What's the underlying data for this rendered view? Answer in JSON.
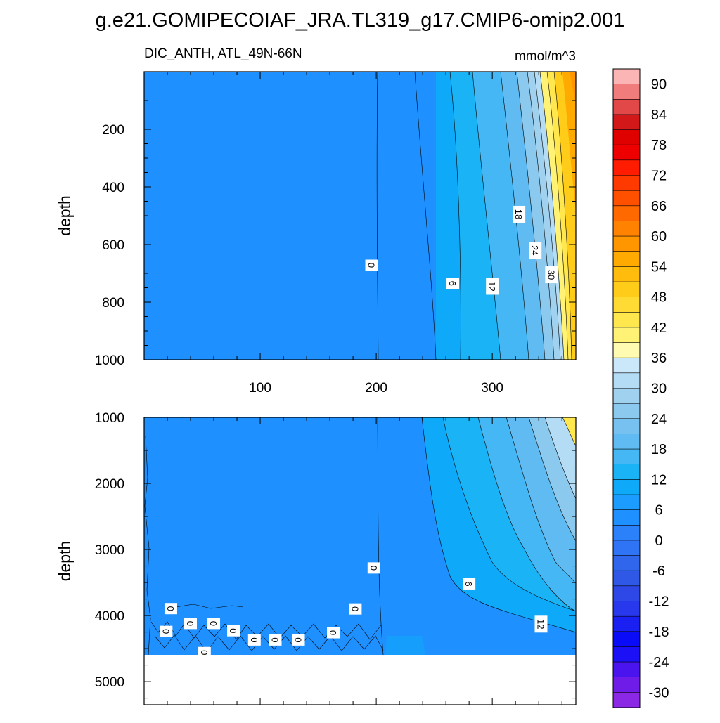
{
  "title": "g.e21.GOMIPECOIAF_JRA.TL319_g17.CMIP6-omip2.001",
  "chart_data": {
    "type": "heatmap",
    "variable": "DIC_ANTH, ATL_49N-66N",
    "units": "mmol/m^3",
    "x_axis": {
      "range": [
        0,
        372
      ],
      "ticks": [
        100,
        200,
        300
      ]
    },
    "upper_panel": {
      "ylabel": "depth",
      "ylim": [
        0,
        1000
      ],
      "yticks": [
        200,
        400,
        600,
        800,
        1000
      ],
      "contour_labels": [
        {
          "value": "0",
          "x": 196,
          "depth": 672
        },
        {
          "value": "6",
          "x": 266,
          "depth": 735
        },
        {
          "value": "12",
          "x": 300,
          "depth": 745
        },
        {
          "value": "18",
          "x": 323,
          "depth": 495
        },
        {
          "value": "24",
          "x": 337,
          "depth": 620
        },
        {
          "value": "30",
          "x": 351,
          "depth": 705
        }
      ]
    },
    "lower_panel": {
      "ylabel": "depth",
      "ylim": [
        1000,
        5350
      ],
      "yticks": [
        1000,
        2000,
        3000,
        4000,
        5000
      ],
      "data_bottom_depth": 4620,
      "contour_labels": [
        {
          "value": "0",
          "x": 198,
          "depth": 3280
        },
        {
          "value": "6",
          "x": 280,
          "depth": 3520
        },
        {
          "value": "12",
          "x": 342,
          "depth": 4130
        },
        {
          "value": "0",
          "x": 182,
          "depth": 3900
        },
        {
          "value": "0",
          "x": 23,
          "depth": 3895
        },
        {
          "value": "0",
          "x": 19,
          "depth": 4240
        },
        {
          "value": "0",
          "x": 40,
          "depth": 4120
        },
        {
          "value": "0",
          "x": 60,
          "depth": 4120
        },
        {
          "value": "0",
          "x": 77,
          "depth": 4230
        },
        {
          "value": "0",
          "x": 52,
          "depth": 4560
        },
        {
          "value": "0",
          "x": 95,
          "depth": 4370
        },
        {
          "value": "0",
          "x": 113,
          "depth": 4370
        },
        {
          "value": "0",
          "x": 133,
          "depth": 4370
        },
        {
          "value": "0",
          "x": 163,
          "depth": 4260
        }
      ]
    },
    "colorbar": {
      "tick_labels": [
        "90",
        "84",
        "78",
        "72",
        "66",
        "60",
        "54",
        "48",
        "42",
        "36",
        "30",
        "24",
        "18",
        "12",
        "6",
        "0",
        "-6",
        "-12",
        "-18",
        "-24",
        "-30"
      ],
      "colors": [
        "#fbb5b5",
        "#f07c7c",
        "#e24848",
        "#d21818",
        "#df0000",
        "#ef0000",
        "#ff1c00",
        "#ff3a00",
        "#ff5000",
        "#ff6900",
        "#ff8200",
        "#ff9600",
        "#ffaa00",
        "#ffbc0c",
        "#ffcc1a",
        "#ffdb33",
        "#ffe74d",
        "#fff275",
        "#fffbb0",
        "#cbe7fa",
        "#b4dcf5",
        "#a0d2f0",
        "#8cc9ef",
        "#76c1ef",
        "#5fbbf1",
        "#44b7f4",
        "#1ab4f6",
        "#0ea9f9",
        "#1c9cff",
        "#1e90ff",
        "#2b81fa",
        "#2f74f4",
        "#2f66ec",
        "#2f58e6",
        "#2d48e6",
        "#2838ec",
        "#1a20f2",
        "#0a0cf7",
        "#1c10f6",
        "#4a14ef",
        "#6f1ce8",
        "#8a28e6"
      ]
    }
  }
}
